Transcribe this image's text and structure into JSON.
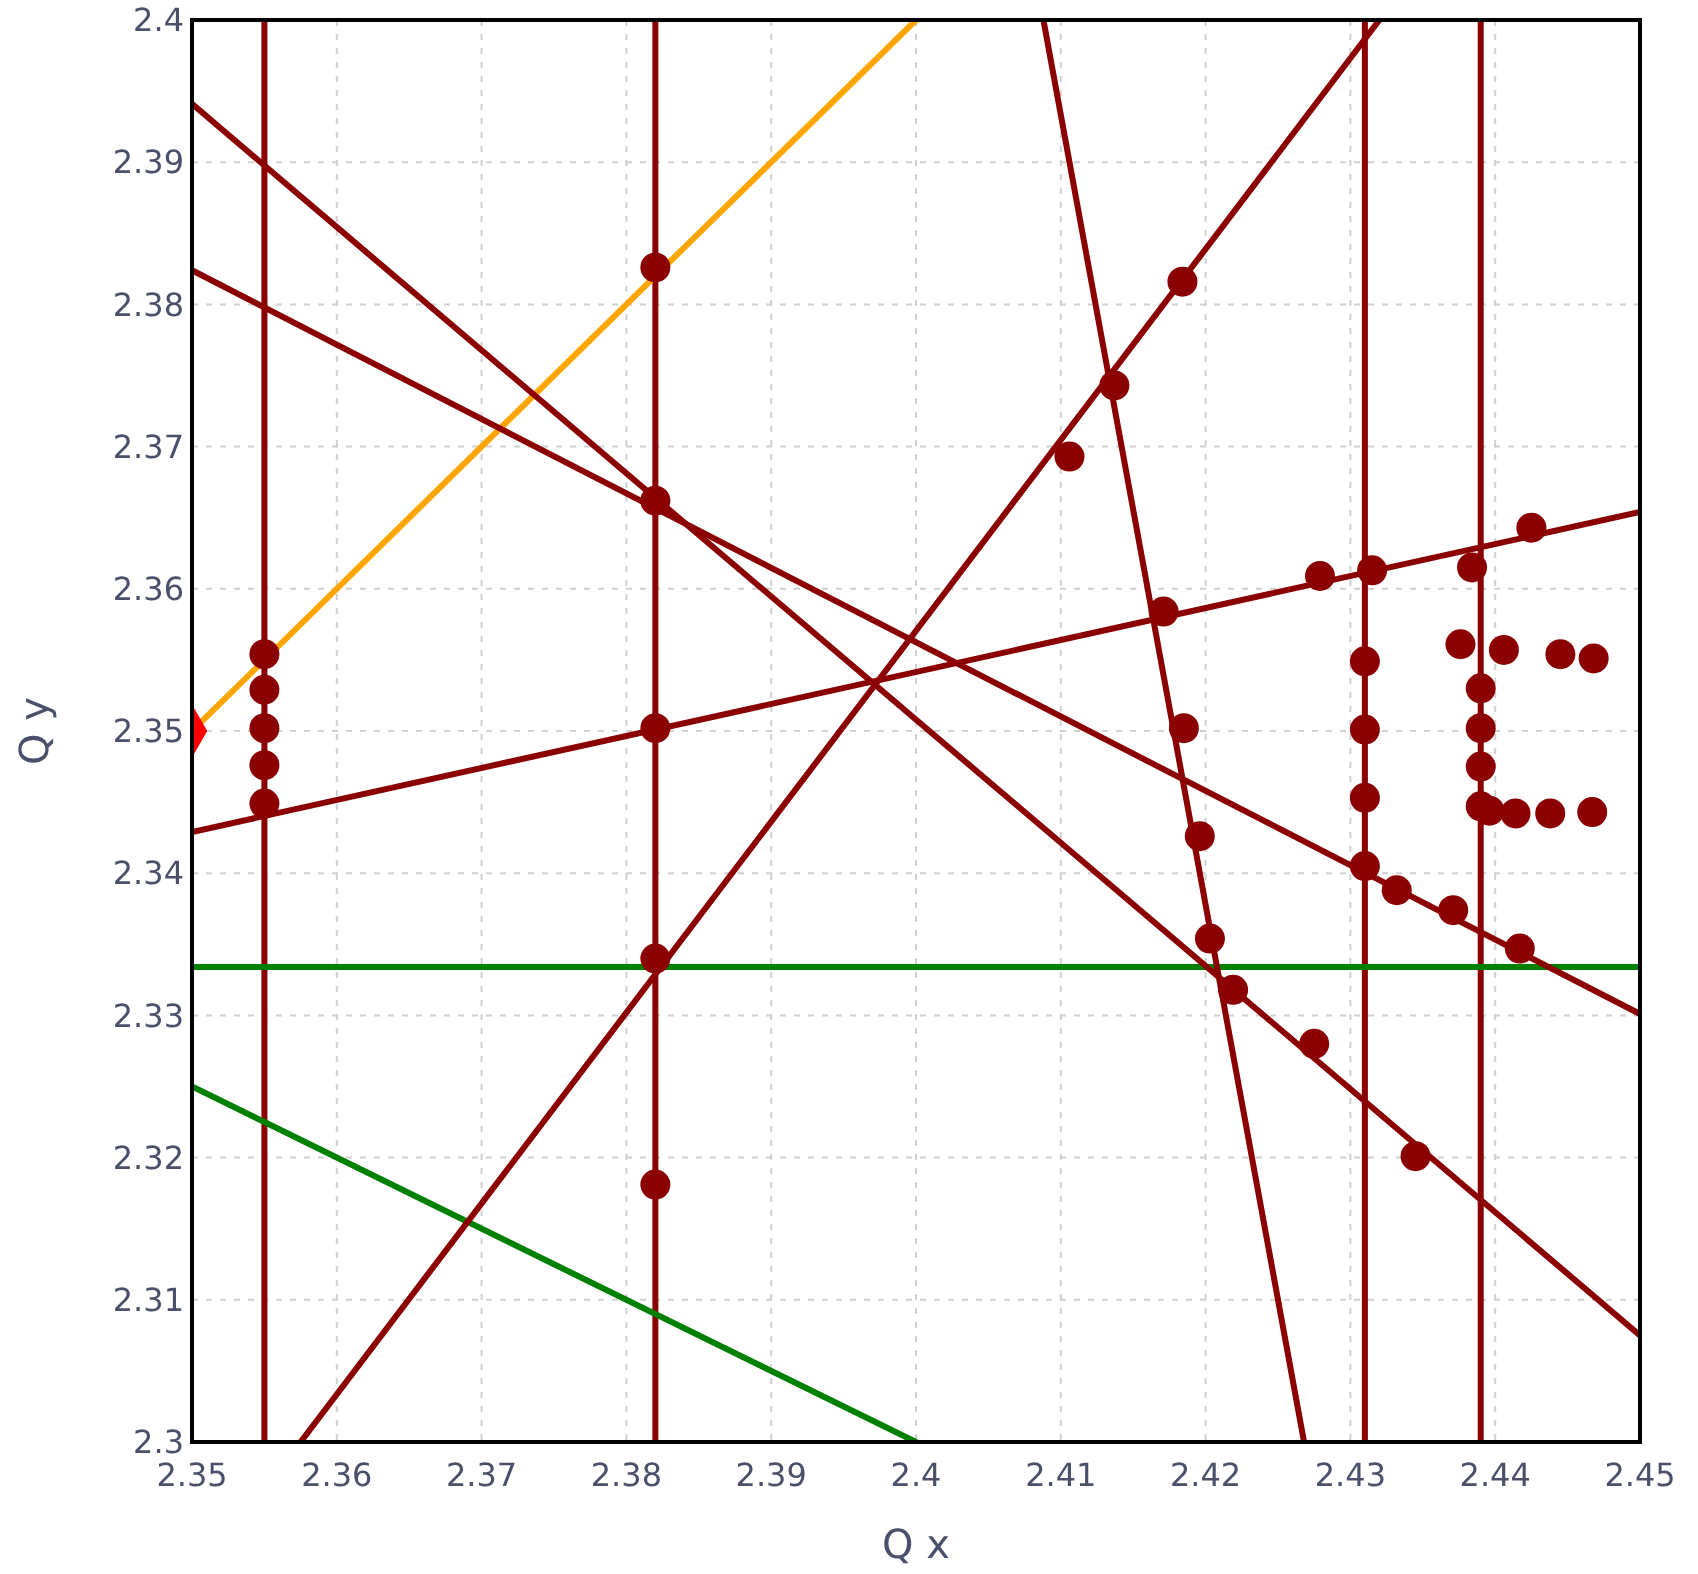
{
  "chart_data": {
    "type": "line",
    "xlabel": "Q x",
    "ylabel": "Q y",
    "xlim": [
      2.35,
      2.45
    ],
    "ylim": [
      2.3,
      2.4
    ],
    "xticks": [
      2.35,
      2.36,
      2.37,
      2.38,
      2.39,
      2.4,
      2.41,
      2.42,
      2.43,
      2.44,
      2.45
    ],
    "yticks": [
      2.3,
      2.31,
      2.32,
      2.33,
      2.34,
      2.35,
      2.36,
      2.37,
      2.38,
      2.39,
      2.4
    ],
    "grid": true,
    "marker": "none",
    "line_style": "solid",
    "series": [
      {
        "color": "#8b0000",
        "x": [
          2.355,
          2.355
        ],
        "values": [
          2.3,
          2.4
        ]
      },
      {
        "color": "#8b0000",
        "x": [
          2.382,
          2.382
        ],
        "values": [
          2.3,
          2.4
        ]
      },
      {
        "color": "#8b0000",
        "x": [
          2.431,
          2.431
        ],
        "values": [
          2.3,
          2.4
        ]
      },
      {
        "color": "#8b0000",
        "x": [
          2.439,
          2.439
        ],
        "values": [
          2.3,
          2.4
        ]
      },
      {
        "color": "#ffa500",
        "x": [
          2.35,
          2.4
        ],
        "values": [
          2.35,
          2.4
        ]
      },
      {
        "color": "#008000",
        "x": [
          2.35,
          2.45
        ],
        "values": [
          2.3334,
          2.3334
        ]
      },
      {
        "color": "#008000",
        "x": [
          2.35,
          2.4
        ],
        "values": [
          2.325,
          2.3
        ]
      },
      {
        "color": "#8b0000",
        "x": [
          2.35,
          2.45
        ],
        "values": [
          2.3941,
          2.3075
        ]
      },
      {
        "color": "#8b0000",
        "x": [
          2.35,
          2.45
        ],
        "values": [
          2.3824,
          2.3301
        ]
      },
      {
        "color": "#8b0000",
        "x": [
          2.35,
          2.45
        ],
        "values": [
          2.3429,
          2.3654
        ]
      },
      {
        "color": "#8b0000",
        "x": [
          2.3575,
          2.432
        ],
        "values": [
          2.3,
          2.4
        ]
      },
      {
        "color": "#8b0000",
        "x": [
          2.4088,
          2.4268
        ],
        "values": [
          2.4,
          2.3
        ]
      },
      {
        "type": "scatter",
        "marker": "circle",
        "color": "#8b0000",
        "x": [
          2.355,
          2.355,
          2.355,
          2.355,
          2.355,
          2.382,
          2.382,
          2.382,
          2.382,
          2.382,
          2.4106,
          2.4137,
          2.4184,
          2.4171,
          2.4185,
          2.4196,
          2.4203,
          2.4219,
          2.4275,
          2.4345,
          2.4279,
          2.4315,
          2.4384,
          2.4425,
          2.431,
          2.431,
          2.431,
          2.431,
          2.4332,
          2.4371,
          2.4417,
          2.439,
          2.439,
          2.439,
          2.439,
          2.4376,
          2.4406,
          2.4445,
          2.4468,
          2.4396,
          2.4414,
          2.4438,
          2.4467
        ],
        "values": [
          2.3554,
          2.3529,
          2.3502,
          2.3476,
          2.3449,
          2.3826,
          2.3662,
          2.3502,
          2.334,
          2.3181,
          2.3693,
          2.3743,
          2.3816,
          2.3584,
          2.3502,
          2.3426,
          2.3354,
          2.3318,
          2.328,
          2.3201,
          2.3609,
          2.3613,
          2.3615,
          2.3643,
          2.3549,
          2.3501,
          2.3453,
          2.3405,
          2.3388,
          2.3374,
          2.3347,
          2.353,
          2.3502,
          2.3475,
          2.3447,
          2.3561,
          2.3557,
          2.3554,
          2.3551,
          2.3444,
          2.3442,
          2.3442,
          2.3443
        ]
      },
      {
        "type": "scatter",
        "marker": "diamond",
        "color": "#ff0000",
        "x": [
          2.35
        ],
        "values": [
          2.35
        ]
      }
    ]
  }
}
